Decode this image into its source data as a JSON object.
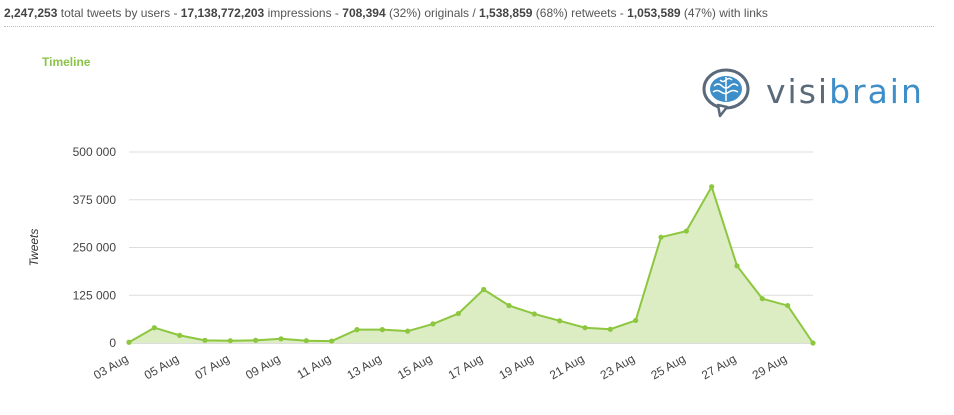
{
  "stats": {
    "total_tweets": "2,247,253",
    "total_tweets_label": "total tweets by users -",
    "impressions": "17,138,772,203",
    "impressions_label": "impressions -",
    "originals": "708,394",
    "originals_pct": "(32%) originals /",
    "retweets": "1,538,859",
    "retweets_pct": "(68%) retweets -",
    "links": "1,053,589",
    "links_pct": "(47%) with links"
  },
  "logo": {
    "part1": "visi",
    "part2": "brain",
    "icon": "brain-bubble-icon"
  },
  "chart_data": {
    "type": "area",
    "title": "Timeline",
    "ylabel": "Tweets",
    "xlabel": "",
    "ylim": [
      0,
      500000
    ],
    "yticks": [
      0,
      125000,
      250000,
      375000,
      500000
    ],
    "ytick_labels": [
      "0",
      "125 000",
      "250 000",
      "375 000",
      "500 000"
    ],
    "grid": true,
    "color": "#8dc63f",
    "fill": "#dcedc4",
    "x": [
      "03 Aug",
      "04 Aug",
      "05 Aug",
      "06 Aug",
      "07 Aug",
      "08 Aug",
      "09 Aug",
      "10 Aug",
      "11 Aug",
      "12 Aug",
      "13 Aug",
      "14 Aug",
      "15 Aug",
      "16 Aug",
      "17 Aug",
      "18 Aug",
      "19 Aug",
      "20 Aug",
      "21 Aug",
      "22 Aug",
      "23 Aug",
      "24 Aug",
      "25 Aug",
      "26 Aug",
      "27 Aug",
      "28 Aug",
      "29 Aug",
      "30 Aug"
    ],
    "xtick_labels": [
      "03 Aug",
      "05 Aug",
      "07 Aug",
      "09 Aug",
      "11 Aug",
      "13 Aug",
      "15 Aug",
      "17 Aug",
      "19 Aug",
      "21 Aug",
      "23 Aug",
      "25 Aug",
      "27 Aug",
      "29 Aug"
    ],
    "values": [
      2000,
      40000,
      20000,
      7000,
      6000,
      7000,
      11000,
      6000,
      5000,
      35000,
      35000,
      31000,
      50000,
      77000,
      140000,
      98000,
      76000,
      58000,
      40000,
      36000,
      59000,
      277000,
      293000,
      409000,
      202000,
      116000,
      98000,
      0
    ]
  }
}
